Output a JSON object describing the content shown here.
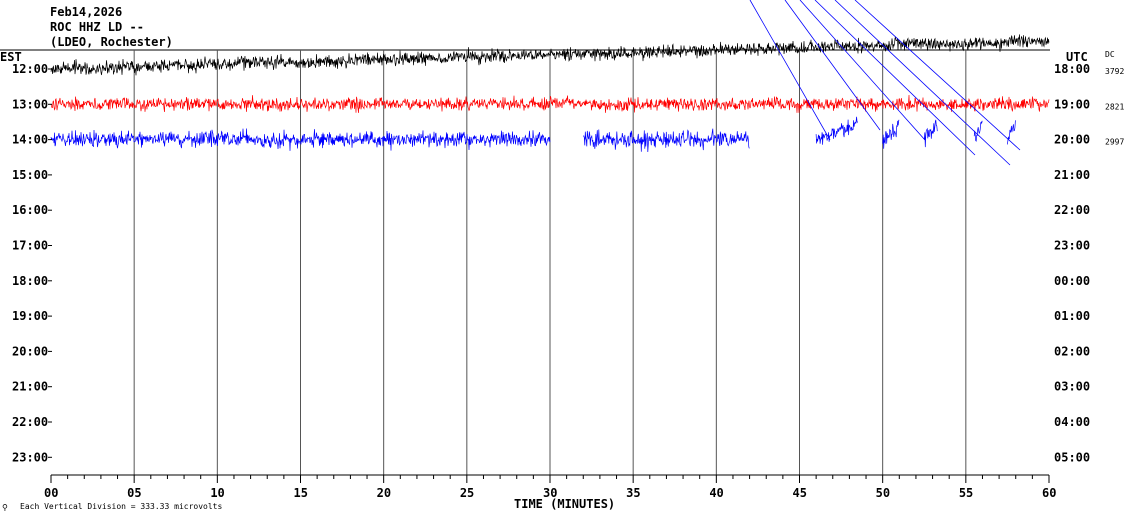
{
  "header": {
    "date": "Feb14,2026",
    "station": "ROC HHZ LD --",
    "network": "(LDEO, Rochester)"
  },
  "left_axis": {
    "label": "EST",
    "ticks": [
      "12:00",
      "13:00",
      "14:00",
      "15:00",
      "16:00",
      "17:00",
      "18:00",
      "19:00",
      "20:00",
      "21:00",
      "22:00",
      "23:00"
    ]
  },
  "right_axis": {
    "label": "UTC",
    "dc_label": "DC",
    "ticks": [
      "18:00",
      "19:00",
      "20:00",
      "21:00",
      "22:00",
      "23:00",
      "00:00",
      "01:00",
      "02:00",
      "03:00",
      "04:00",
      "05:00"
    ],
    "dc_values": [
      "3792",
      "2821",
      "2997"
    ]
  },
  "footer": {
    "scale_note": "Each Vertical Division =  333.33 microvolts"
  },
  "chart_data": {
    "type": "line",
    "xlabel": "TIME (MINUTES)",
    "xlim": [
      0,
      60
    ],
    "x_ticks": [
      "00",
      "05",
      "10",
      "15",
      "20",
      "25",
      "30",
      "35",
      "40",
      "45",
      "50",
      "55",
      "60"
    ],
    "series": [
      {
        "color": "#000000",
        "hour_row": 0,
        "segments": [
          [
            0,
            60
          ]
        ],
        "amplitude": "medium"
      },
      {
        "color": "#ff0000",
        "hour_row": 1,
        "segments": [
          [
            0,
            60
          ]
        ],
        "amplitude": "medium"
      },
      {
        "color": "#0000ff",
        "hour_row": 2,
        "segments": [
          [
            0,
            30
          ],
          [
            32,
            42
          ],
          [
            46,
            48.5
          ],
          [
            50,
            51
          ],
          [
            52.5,
            53.3
          ],
          [
            55.5,
            56
          ],
          [
            57.5,
            58
          ]
        ],
        "amplitude": "large"
      }
    ],
    "grid": "vertical every 5 minutes"
  }
}
